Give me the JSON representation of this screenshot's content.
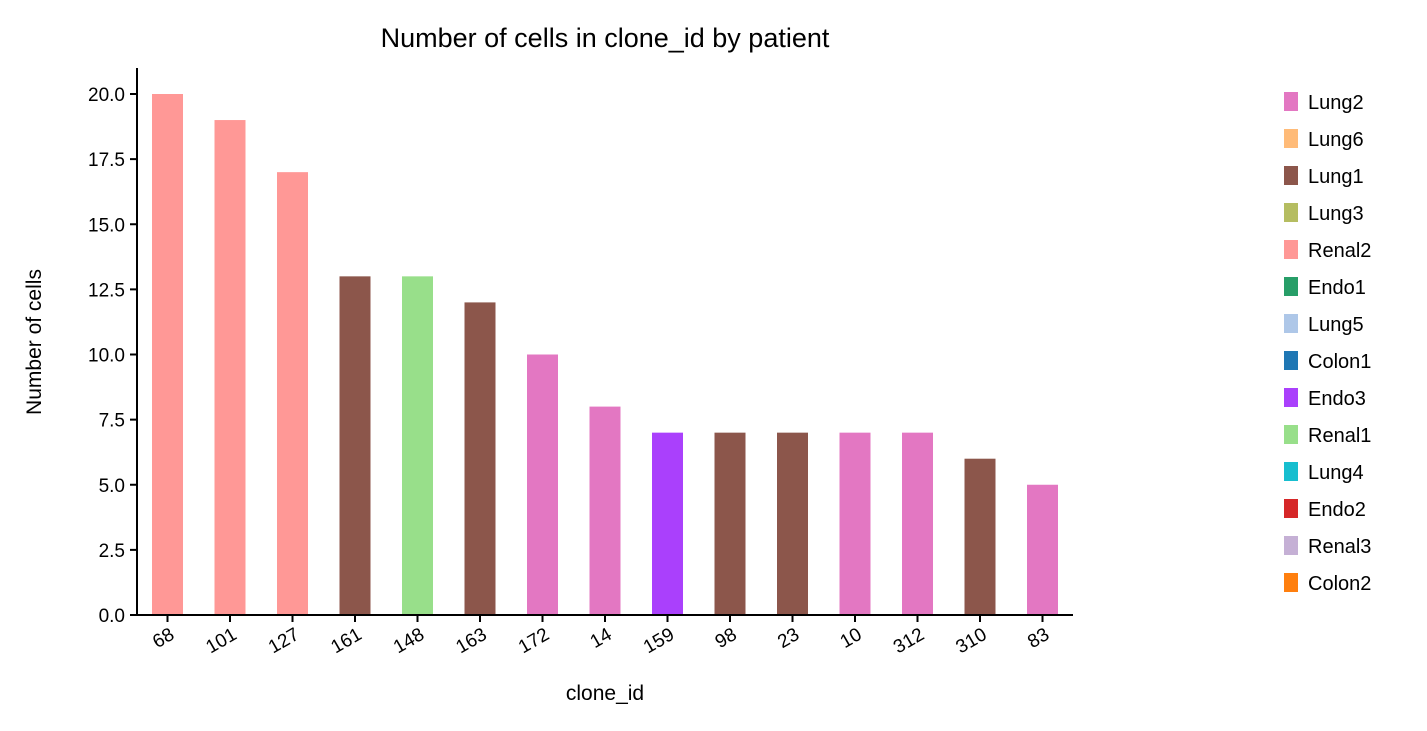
{
  "chart_data": {
    "type": "bar",
    "title": "Number of cells in clone_id by patient",
    "xlabel": "clone_id",
    "ylabel": "Number of cells",
    "ylim": [
      0,
      21
    ],
    "yticks": [
      "0.0",
      "2.5",
      "5.0",
      "7.5",
      "10.0",
      "12.5",
      "15.0",
      "17.5",
      "20.0"
    ],
    "ytick_values": [
      0,
      2.5,
      5,
      7.5,
      10,
      12.5,
      15,
      17.5,
      20
    ],
    "grid": false,
    "legend_position": "right",
    "categories": [
      "68",
      "101",
      "127",
      "161",
      "148",
      "163",
      "172",
      "14",
      "159",
      "98",
      "23",
      "10",
      "312",
      "310",
      "83"
    ],
    "values": [
      20,
      19,
      17,
      13,
      13,
      12,
      10,
      8,
      7,
      7,
      7,
      7,
      7,
      6,
      5
    ],
    "bar_groups": [
      "Renal2",
      "Renal2",
      "Renal2",
      "Lung1",
      "Renal1",
      "Lung1",
      "Lung2",
      "Lung2",
      "Endo3",
      "Lung1",
      "Lung1",
      "Lung2",
      "Lung2",
      "Lung1",
      "Lung2"
    ],
    "legend": [
      {
        "name": "Lung2",
        "color": "#e377c2"
      },
      {
        "name": "Lung6",
        "color": "#ffbb78"
      },
      {
        "name": "Lung1",
        "color": "#8c564b"
      },
      {
        "name": "Lung3",
        "color": "#b5bd61"
      },
      {
        "name": "Renal2",
        "color": "#ff9896"
      },
      {
        "name": "Endo1",
        "color": "#279e68"
      },
      {
        "name": "Lung5",
        "color": "#aec7e8"
      },
      {
        "name": "Colon1",
        "color": "#1f77b4"
      },
      {
        "name": "Endo3",
        "color": "#aa40fc"
      },
      {
        "name": "Renal1",
        "color": "#98df8a"
      },
      {
        "name": "Lung4",
        "color": "#17becf"
      },
      {
        "name": "Endo2",
        "color": "#d62728"
      },
      {
        "name": "Renal3",
        "color": "#c5b0d5"
      },
      {
        "name": "Colon2",
        "color": "#ff7f0e"
      }
    ]
  }
}
